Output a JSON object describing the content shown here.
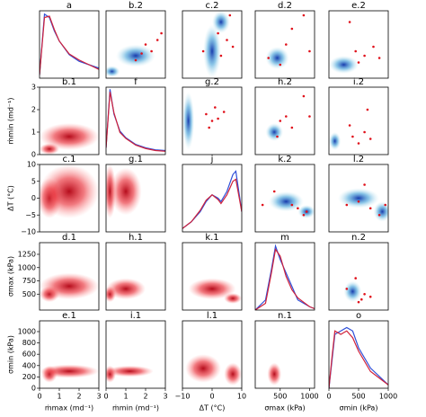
{
  "chart_data": [
    {
      "type": "kde",
      "title": "a",
      "xlim": [
        0,
        3
      ],
      "ylim": [
        0,
        1
      ],
      "x": [
        0,
        0.25,
        0.5,
        0.75,
        1,
        1.5,
        2,
        2.5,
        3
      ],
      "series": [
        {
          "color": "#2f4fd8",
          "values": [
            0.05,
            0.95,
            0.9,
            0.7,
            0.55,
            0.35,
            0.25,
            0.2,
            0.15
          ]
        },
        {
          "color": "#d0213a",
          "values": [
            0.05,
            0.9,
            0.92,
            0.72,
            0.55,
            0.36,
            0.27,
            0.2,
            0.13
          ]
        }
      ]
    },
    {
      "type": "density",
      "title": "b.2",
      "color": "blue",
      "xlim": [
        0,
        3
      ],
      "ylim": [
        0,
        3
      ],
      "peaks": [
        [
          0.3,
          0.3,
          0.4,
          0.25
        ],
        [
          1.5,
          1,
          1,
          0.5
        ]
      ],
      "points": [
        [
          1.5,
          0.8
        ],
        [
          2,
          1.5
        ],
        [
          2.3,
          1.2
        ],
        [
          2.6,
          1.7
        ],
        [
          2.8,
          2
        ],
        [
          1.8,
          1.1
        ]
      ]
    },
    {
      "type": "density",
      "title": "c.2",
      "color": "blue",
      "xlim": [
        -10,
        10
      ],
      "ylim": [
        0,
        3
      ],
      "peaks": [
        [
          0,
          1.2,
          3,
          1.2
        ],
        [
          3,
          2.5,
          3,
          0.5
        ]
      ],
      "points": [
        [
          -3,
          1.2
        ],
        [
          2,
          2
        ],
        [
          5,
          1.7
        ],
        [
          7,
          1.4
        ],
        [
          3,
          1
        ],
        [
          6,
          2.8
        ]
      ]
    },
    {
      "type": "density",
      "title": "d.2",
      "color": "blue",
      "xlim": [
        75,
        1085
      ],
      "ylim": [
        0,
        3
      ],
      "peaks": [
        [
          450,
          0.9,
          200,
          0.5
        ]
      ],
      "points": [
        [
          300,
          0.9
        ],
        [
          600,
          1.5
        ],
        [
          700,
          2.2
        ],
        [
          900,
          2.8
        ],
        [
          1000,
          1.2
        ],
        [
          500,
          0.6
        ]
      ]
    },
    {
      "type": "density",
      "title": "e.2",
      "color": "blue",
      "xlim": [
        0,
        1000
      ],
      "ylim": [
        0,
        3
      ],
      "peaks": [
        [
          250,
          0.6,
          250,
          0.4
        ]
      ],
      "points": [
        [
          500,
          0.7
        ],
        [
          600,
          1.0
        ],
        [
          750,
          1.4
        ],
        [
          850,
          0.9
        ],
        [
          450,
          1.2
        ],
        [
          350,
          2.5
        ]
      ]
    },
    {
      "type": "density",
      "title": "b.1",
      "color": "red",
      "xlim": [
        0,
        3
      ],
      "ylim": [
        0,
        3
      ],
      "yticks": [
        0,
        1,
        2,
        3
      ],
      "ylabel": "ṁmin (md⁻¹)",
      "peaks": [
        [
          0.5,
          0.25,
          0.5,
          0.25
        ],
        [
          1.5,
          0.8,
          1.5,
          0.6
        ]
      ]
    },
    {
      "type": "kde",
      "title": "f",
      "xlim": [
        0,
        3
      ],
      "ylim": [
        0,
        1
      ],
      "x": [
        0,
        0.2,
        0.4,
        0.7,
        1,
        1.5,
        2,
        2.5,
        3
      ],
      "series": [
        {
          "color": "#2f4fd8",
          "values": [
            0.1,
            0.97,
            0.6,
            0.35,
            0.25,
            0.15,
            0.1,
            0.07,
            0.06
          ]
        },
        {
          "color": "#d0213a",
          "values": [
            0.1,
            0.93,
            0.62,
            0.33,
            0.24,
            0.14,
            0.09,
            0.06,
            0.05
          ]
        }
      ]
    },
    {
      "type": "density",
      "title": "g.2",
      "color": "blue",
      "xlim": [
        -10,
        10
      ],
      "ylim": [
        0,
        3
      ],
      "peaks": [
        [
          -8,
          1.5,
          2,
          1.3
        ]
      ],
      "points": [
        [
          -2,
          1.8
        ],
        [
          0,
          1.5
        ],
        [
          1,
          2.1
        ],
        [
          2,
          1.6
        ],
        [
          -1,
          1.2
        ],
        [
          4,
          1.9
        ]
      ]
    },
    {
      "type": "density",
      "title": "h.2",
      "color": "blue",
      "xlim": [
        75,
        1085
      ],
      "ylim": [
        0,
        3
      ],
      "peaks": [
        [
          400,
          1,
          150,
          0.4
        ]
      ],
      "points": [
        [
          500,
          1.5
        ],
        [
          600,
          1.7
        ],
        [
          700,
          1.2
        ],
        [
          900,
          2.6
        ],
        [
          1000,
          1.7
        ],
        [
          450,
          0.8
        ]
      ]
    },
    {
      "type": "density",
      "title": "i.2",
      "color": "blue",
      "xlim": [
        0,
        1000
      ],
      "ylim": [
        0,
        3
      ],
      "peaks": [
        [
          100,
          0.6,
          100,
          0.4
        ]
      ],
      "points": [
        [
          400,
          0.8
        ],
        [
          500,
          0.5
        ],
        [
          600,
          1.0
        ],
        [
          700,
          0.7
        ],
        [
          350,
          1.3
        ],
        [
          650,
          2
        ]
      ]
    },
    {
      "type": "density",
      "title": "c.1",
      "color": "red",
      "xlim": [
        0,
        3
      ],
      "ylim": [
        -10,
        10
      ],
      "yticks": [
        {
          "value": -10,
          "label": "−10"
        },
        {
          "value": -5,
          "label": "−5"
        },
        0,
        5,
        10
      ],
      "ylabel": "ΔT (°C)",
      "peaks": [
        [
          0.5,
          0,
          0.6,
          6
        ],
        [
          1.5,
          2,
          1.5,
          8
        ]
      ]
    },
    {
      "type": "density",
      "title": "g.1",
      "color": "red",
      "xlim": [
        0,
        3
      ],
      "ylim": [
        -10,
        10
      ],
      "peaks": [
        [
          0.2,
          2,
          0.3,
          8
        ],
        [
          1,
          2,
          0.8,
          7
        ]
      ]
    },
    {
      "type": "kde",
      "title": "j",
      "xlim": [
        -10,
        10
      ],
      "ylim": [
        0,
        1
      ],
      "x": [
        -10,
        -7,
        -4,
        -2,
        0,
        2,
        3,
        5,
        7,
        8,
        10
      ],
      "series": [
        {
          "color": "#2f4fd8",
          "values": [
            0.05,
            0.15,
            0.3,
            0.45,
            0.55,
            0.5,
            0.45,
            0.6,
            0.85,
            0.9,
            0.3
          ]
        },
        {
          "color": "#d0213a",
          "values": [
            0.05,
            0.15,
            0.32,
            0.47,
            0.55,
            0.48,
            0.42,
            0.55,
            0.75,
            0.78,
            0.3
          ]
        }
      ]
    },
    {
      "type": "density",
      "title": "k.2",
      "color": "blue",
      "xlim": [
        75,
        1085
      ],
      "ylim": [
        -10,
        10
      ],
      "peaks": [
        [
          950,
          -4,
          150,
          2
        ],
        [
          600,
          -1,
          300,
          3
        ]
      ],
      "points": [
        [
          200,
          -2
        ],
        [
          400,
          2
        ],
        [
          700,
          -2
        ],
        [
          800,
          -3
        ],
        [
          900,
          -5
        ],
        [
          950,
          -4
        ]
      ]
    },
    {
      "type": "density",
      "title": "l.2",
      "color": "blue",
      "xlim": [
        0,
        1000
      ],
      "ylim": [
        -10,
        10
      ],
      "peaks": [
        [
          900,
          -4,
          150,
          3
        ],
        [
          500,
          0,
          350,
          3
        ]
      ],
      "points": [
        [
          300,
          -2
        ],
        [
          500,
          -1
        ],
        [
          700,
          -3
        ],
        [
          850,
          -5
        ],
        [
          600,
          4
        ],
        [
          950,
          -2
        ]
      ]
    },
    {
      "type": "density",
      "title": "d.1",
      "color": "red",
      "xlim": [
        0,
        3
      ],
      "ylim": [
        200,
        1470
      ],
      "yticks": [
        500,
        750,
        1000,
        1250
      ],
      "ylabel": "σmax (kPa)",
      "peaks": [
        [
          0.5,
          500,
          0.5,
          150
        ],
        [
          1.5,
          650,
          1.5,
          250
        ]
      ]
    },
    {
      "type": "density",
      "title": "h.1",
      "color": "red",
      "xlim": [
        0,
        3
      ],
      "ylim": [
        200,
        1470
      ],
      "peaks": [
        [
          0.2,
          500,
          0.3,
          150
        ],
        [
          1,
          600,
          1,
          200
        ]
      ]
    },
    {
      "type": "density",
      "title": "k.1",
      "color": "red",
      "xlim": [
        -10,
        10
      ],
      "ylim": [
        200,
        1470
      ],
      "peaks": [
        [
          7,
          420,
          3,
          100
        ],
        [
          0,
          600,
          8,
          200
        ]
      ]
    },
    {
      "type": "kde",
      "title": "m",
      "xlim": [
        75,
        1085
      ],
      "ylim": [
        0,
        1
      ],
      "x": [
        75,
        250,
        350,
        420,
        500,
        600,
        700,
        800,
        1000,
        1085
      ],
      "series": [
        {
          "color": "#2f4fd8",
          "values": [
            0,
            0.15,
            0.6,
            0.95,
            0.75,
            0.55,
            0.35,
            0.15,
            0.05,
            0.02
          ]
        },
        {
          "color": "#d0213a",
          "values": [
            0,
            0.1,
            0.55,
            0.9,
            0.8,
            0.5,
            0.3,
            0.18,
            0.05,
            0.02
          ]
        }
      ]
    },
    {
      "type": "density",
      "title": "n.2",
      "color": "blue",
      "xlim": [
        0,
        1000
      ],
      "ylim": [
        200,
        1470
      ],
      "peaks": [
        [
          400,
          550,
          150,
          200
        ]
      ],
      "points": [
        [
          300,
          600
        ],
        [
          450,
          800
        ],
        [
          550,
          400
        ],
        [
          600,
          500
        ],
        [
          700,
          450
        ],
        [
          500,
          350
        ]
      ]
    },
    {
      "type": "density",
      "title": "e.1",
      "color": "red",
      "xlim": [
        0,
        3
      ],
      "ylim": [
        0,
        1190
      ],
      "xticks": [
        0,
        1,
        2,
        3
      ],
      "xlabel": "ṁmax (md⁻¹)",
      "yticks": [
        0,
        200,
        400,
        600,
        800,
        1000
      ],
      "ylabel": "σmin (kPa)",
      "peaks": [
        [
          0.5,
          250,
          0.4,
          150
        ],
        [
          1.5,
          300,
          1.5,
          120
        ]
      ]
    },
    {
      "type": "density",
      "title": "i.1",
      "color": "red",
      "xlim": [
        0,
        3
      ],
      "ylim": [
        0,
        1190
      ],
      "xticks": [
        0,
        1,
        2,
        3
      ],
      "xlabel": "ṁmin (md⁻¹)",
      "peaks": [
        [
          0.2,
          250,
          0.3,
          150
        ],
        [
          1.2,
          300,
          1.2,
          100
        ]
      ]
    },
    {
      "type": "density",
      "title": "l.1",
      "color": "red",
      "xlim": [
        -10,
        10
      ],
      "ylim": [
        0,
        1190
      ],
      "xticks": [
        {
          "value": -10,
          "label": "−10"
        },
        0,
        10
      ],
      "xlabel": "ΔT (°C)",
      "peaks": [
        [
          7,
          250,
          3,
          200
        ],
        [
          -3,
          350,
          6,
          250
        ]
      ]
    },
    {
      "type": "density",
      "title": "n.1",
      "color": "red",
      "xlim": [
        75,
        1085
      ],
      "ylim": [
        0,
        1190
      ],
      "xticks": [
        500,
        1000
      ],
      "xlabel": "σmax (kPa)",
      "peaks": [
        [
          400,
          250,
          120,
          200
        ]
      ]
    },
    {
      "type": "kde",
      "title": "o",
      "xlim": [
        0,
        1000
      ],
      "ylim": [
        0,
        1
      ],
      "xticks": [
        0,
        500,
        1000
      ],
      "xlabel": "σmin (kPa)",
      "x": [
        0,
        50,
        100,
        200,
        300,
        400,
        500,
        700,
        1000
      ],
      "series": [
        {
          "color": "#2f4fd8",
          "values": [
            0,
            0.4,
            0.8,
            0.85,
            0.9,
            0.85,
            0.6,
            0.3,
            0.05
          ]
        },
        {
          "color": "#d0213a",
          "values": [
            0,
            0.45,
            0.85,
            0.8,
            0.85,
            0.75,
            0.55,
            0.25,
            0.05
          ]
        }
      ]
    }
  ]
}
